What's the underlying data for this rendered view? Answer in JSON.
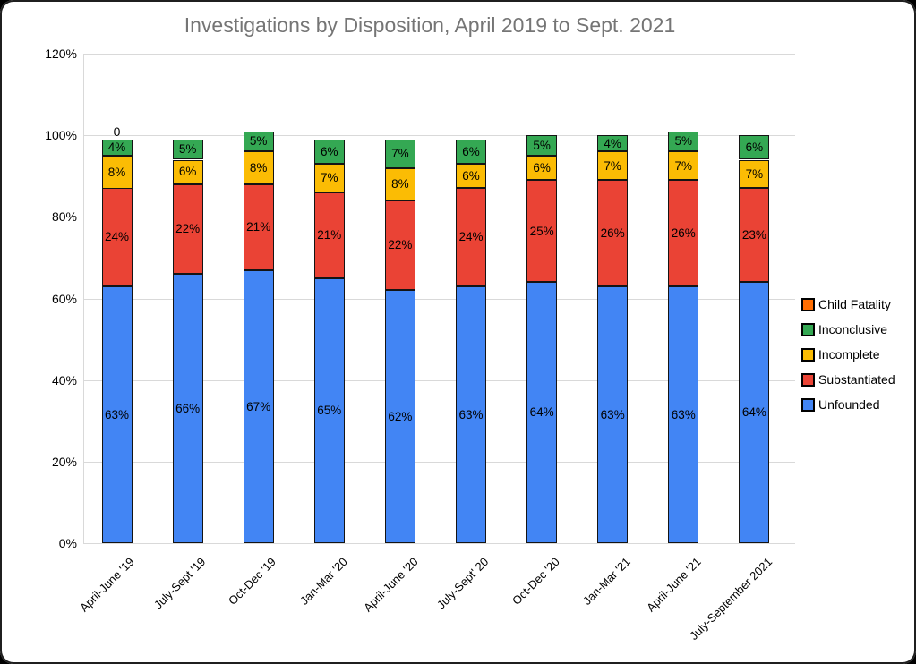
{
  "chart_data": {
    "type": "bar",
    "stacked": true,
    "title": "Investigations by Disposition, April 2019 to Sept. 2021",
    "categories": [
      "April-June '19",
      "July-Sept '19",
      "Oct-Dec '19",
      "Jan-Mar '20",
      "April-June '20",
      "July-Sept' 20",
      "Oct-Dec '20",
      "Jan-Mar '21",
      "April-June '21",
      "July-September 2021"
    ],
    "series": [
      {
        "name": "Unfounded",
        "color": "#4285f4",
        "values": [
          63,
          66,
          67,
          65,
          62,
          63,
          64,
          63,
          63,
          64
        ]
      },
      {
        "name": "Substantiated",
        "color": "#ea4335",
        "values": [
          24,
          22,
          21,
          21,
          22,
          24,
          25,
          26,
          26,
          23
        ]
      },
      {
        "name": "Incomplete",
        "color": "#fbbc04",
        "values": [
          8,
          6,
          8,
          7,
          8,
          6,
          6,
          7,
          7,
          7
        ]
      },
      {
        "name": "Inconclusive",
        "color": "#34a853",
        "values": [
          4,
          5,
          5,
          6,
          7,
          6,
          5,
          4,
          5,
          6
        ]
      },
      {
        "name": "Child Fatality",
        "color": "#ff6d01",
        "values": [
          0,
          0,
          0,
          0,
          0,
          0,
          0,
          0,
          0,
          0
        ]
      }
    ],
    "bar_label_suffix": "%",
    "zero_label": {
      "category_index": 0,
      "series": "Child Fatality",
      "text": "0"
    },
    "y_axis": {
      "ticks": [
        0,
        20,
        40,
        60,
        80,
        100,
        120
      ],
      "tick_suffix": "%",
      "min": 0,
      "max": 120
    },
    "grid": true,
    "legend": {
      "position": "right",
      "items_top_to_bottom": [
        "Child Fatality",
        "Inconclusive",
        "Incomplete",
        "Substantiated",
        "Unfounded"
      ]
    }
  }
}
